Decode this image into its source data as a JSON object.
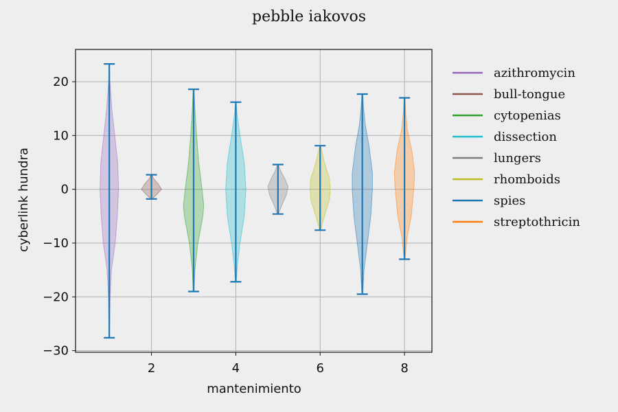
{
  "chart_data": {
    "type": "violin",
    "title": "pebble iakovos",
    "xlabel": "mantenimiento",
    "ylabel": "cyberlink hundra",
    "xlim": [
      0.2,
      8.65
    ],
    "ylim": [
      -30.3,
      26
    ],
    "xticks": [
      2,
      4,
      6,
      8
    ],
    "yticks": [
      -30,
      -20,
      -10,
      0,
      10,
      20
    ],
    "ytick_labels": [
      "−30",
      "−20",
      "−10",
      "0",
      "10",
      "20"
    ],
    "grid": true,
    "legend_position": "outside-right",
    "whisker_color": "#1f77b4",
    "series": [
      {
        "name": "azithromycin",
        "x": 1,
        "min": -27.6,
        "max": 23.3,
        "color": "#9467bd",
        "profile": [
          [
            -27.6,
            0.004
          ],
          [
            -20,
            0.02
          ],
          [
            -15,
            0.05
          ],
          [
            -10,
            0.14
          ],
          [
            -5,
            0.19
          ],
          [
            0,
            0.22
          ],
          [
            5,
            0.2
          ],
          [
            10,
            0.13
          ],
          [
            15,
            0.06
          ],
          [
            20,
            0.015
          ],
          [
            23.3,
            0.004
          ]
        ]
      },
      {
        "name": "bull-tongue",
        "x": 2,
        "min": -1.8,
        "max": 2.7,
        "color": "#8c564b",
        "profile": [
          [
            -1.8,
            0.01
          ],
          [
            -1,
            0.12
          ],
          [
            0,
            0.24
          ],
          [
            1,
            0.16
          ],
          [
            2,
            0.05
          ],
          [
            2.7,
            0.01
          ]
        ]
      },
      {
        "name": "cytopenias",
        "x": 3,
        "min": -19.0,
        "max": 18.6,
        "color": "#2ca02c",
        "profile": [
          [
            -19,
            0.01
          ],
          [
            -15,
            0.03
          ],
          [
            -10,
            0.1
          ],
          [
            -5,
            0.22
          ],
          [
            -3,
            0.24
          ],
          [
            0,
            0.2
          ],
          [
            5,
            0.12
          ],
          [
            10,
            0.07
          ],
          [
            15,
            0.03
          ],
          [
            18.6,
            0.01
          ]
        ]
      },
      {
        "name": "dissection",
        "x": 4,
        "min": -17.2,
        "max": 16.2,
        "color": "#17becf",
        "profile": [
          [
            -17.2,
            0.01
          ],
          [
            -14,
            0.04
          ],
          [
            -10,
            0.1
          ],
          [
            -5,
            0.2
          ],
          [
            0,
            0.24
          ],
          [
            5,
            0.2
          ],
          [
            10,
            0.1
          ],
          [
            14,
            0.03
          ],
          [
            16.2,
            0.01
          ]
        ]
      },
      {
        "name": "lungers",
        "x": 5,
        "min": -4.6,
        "max": 4.6,
        "color": "#7f7f7f",
        "profile": [
          [
            -4.6,
            0.01
          ],
          [
            -3,
            0.09
          ],
          [
            -1,
            0.2
          ],
          [
            0.5,
            0.24
          ],
          [
            2,
            0.16
          ],
          [
            3.5,
            0.06
          ],
          [
            4.6,
            0.01
          ]
        ]
      },
      {
        "name": "rhomboids",
        "x": 6,
        "min": -7.6,
        "max": 8.1,
        "color": "#bcbd22",
        "profile": [
          [
            -7.6,
            0.01
          ],
          [
            -5,
            0.1
          ],
          [
            -2,
            0.22
          ],
          [
            0,
            0.24
          ],
          [
            2,
            0.22
          ],
          [
            5,
            0.1
          ],
          [
            8.1,
            0.01
          ]
        ]
      },
      {
        "name": "spies",
        "x": 7,
        "min": -19.5,
        "max": 17.7,
        "color": "#1f77b4",
        "profile": [
          [
            -19.5,
            0.01
          ],
          [
            -15,
            0.04
          ],
          [
            -10,
            0.12
          ],
          [
            -5,
            0.2
          ],
          [
            0,
            0.24
          ],
          [
            3,
            0.24
          ],
          [
            8,
            0.16
          ],
          [
            12,
            0.07
          ],
          [
            15,
            0.03
          ],
          [
            17.7,
            0.01
          ]
        ]
      },
      {
        "name": "streptothricin",
        "x": 8,
        "min": -13.0,
        "max": 17.0,
        "color": "#ff7f0e",
        "profile": [
          [
            -13,
            0.01
          ],
          [
            -9,
            0.06
          ],
          [
            -5,
            0.16
          ],
          [
            0,
            0.22
          ],
          [
            3,
            0.24
          ],
          [
            7,
            0.18
          ],
          [
            11,
            0.07
          ],
          [
            14,
            0.03
          ],
          [
            17,
            0.01
          ]
        ]
      }
    ]
  }
}
